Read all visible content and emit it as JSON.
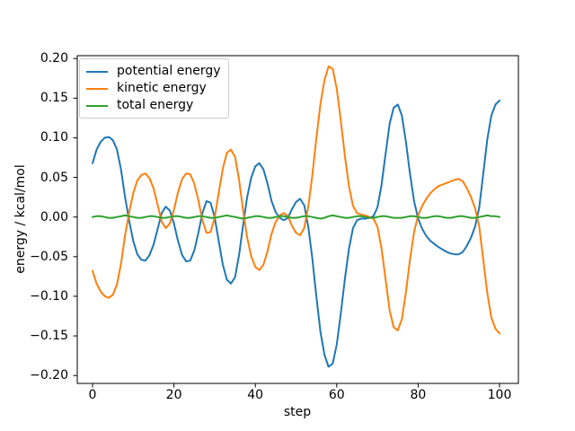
{
  "figure": {
    "background": "#ffffff",
    "xlabel": "step",
    "ylabel": "energy / kcal/mol"
  },
  "legend": {
    "position": "upper left",
    "entries": [
      {
        "label": "potential energy",
        "color": "#1f77b4"
      },
      {
        "label": "kinetic energy",
        "color": "#ff7f0e"
      },
      {
        "label": "total energy",
        "color": "#2ca02c"
      }
    ]
  },
  "axis": {
    "spine_color": "#000000",
    "text_color": "#000000"
  },
  "chart_data": {
    "type": "line",
    "title": "",
    "xlabel": "step",
    "ylabel": "energy / kcal/mol",
    "grid": false,
    "legend_position": "upper left",
    "xlim": [
      -3.8,
      104.6
    ],
    "ylim": [
      -0.21,
      0.2036
    ],
    "xticks": [
      {
        "value": 0,
        "label": "0"
      },
      {
        "value": 20,
        "label": "20"
      },
      {
        "value": 40,
        "label": "40"
      },
      {
        "value": 60,
        "label": "60"
      },
      {
        "value": 80,
        "label": "80"
      },
      {
        "value": 100,
        "label": "100"
      }
    ],
    "yticks": [
      {
        "value": 0.2,
        "label": "0.20"
      },
      {
        "value": 0.15,
        "label": "0.15"
      },
      {
        "value": 0.1,
        "label": "0.10"
      },
      {
        "value": 0.05,
        "label": "0.05"
      },
      {
        "value": 0.0,
        "label": "0.00"
      },
      {
        "value": -0.05,
        "label": "−0.05"
      },
      {
        "value": -0.1,
        "label": "−0.10"
      },
      {
        "value": -0.15,
        "label": "−0.15"
      },
      {
        "value": -0.2,
        "label": "−0.20"
      }
    ],
    "x": [
      0,
      1,
      2,
      3,
      4,
      5,
      6,
      7,
      8,
      9,
      10,
      11,
      12,
      13,
      14,
      15,
      16,
      17,
      18,
      19,
      20,
      21,
      22,
      23,
      24,
      25,
      26,
      27,
      28,
      29,
      30,
      31,
      32,
      33,
      34,
      35,
      36,
      37,
      38,
      39,
      40,
      41,
      42,
      43,
      44,
      45,
      46,
      47,
      48,
      49,
      50,
      51,
      52,
      53,
      54,
      55,
      56,
      57,
      58,
      59,
      60,
      61,
      62,
      63,
      64,
      65,
      66,
      67,
      68,
      69,
      70,
      71,
      72,
      73,
      74,
      75,
      76,
      77,
      78,
      79,
      80,
      81,
      82,
      83,
      84,
      85,
      86,
      87,
      88,
      89,
      90,
      91,
      92,
      93,
      94,
      95,
      96,
      97,
      98,
      99,
      100
    ],
    "series": [
      {
        "name": "potential energy",
        "color": "#1f77b4",
        "values": [
          0.068,
          0.085,
          0.095,
          0.1,
          0.101,
          0.097,
          0.085,
          0.06,
          0.025,
          -0.005,
          -0.03,
          -0.047,
          -0.054,
          -0.055,
          -0.048,
          -0.035,
          -0.015,
          0.005,
          0.013,
          0.008,
          -0.008,
          -0.03,
          -0.048,
          -0.056,
          -0.055,
          -0.042,
          -0.02,
          0.005,
          0.02,
          0.018,
          0.0,
          -0.03,
          -0.06,
          -0.079,
          -0.084,
          -0.076,
          -0.048,
          -0.01,
          0.025,
          0.05,
          0.064,
          0.068,
          0.06,
          0.042,
          0.02,
          0.006,
          -0.001,
          -0.004,
          -0.001,
          0.01,
          0.019,
          0.023,
          0.015,
          -0.012,
          -0.052,
          -0.1,
          -0.145,
          -0.174,
          -0.189,
          -0.185,
          -0.161,
          -0.122,
          -0.078,
          -0.04,
          -0.014,
          -0.004,
          -0.002,
          -0.002,
          -0.001,
          0.001,
          0.012,
          0.04,
          0.08,
          0.118,
          0.138,
          0.142,
          0.128,
          0.095,
          0.055,
          0.02,
          -0.002,
          -0.015,
          -0.024,
          -0.03,
          -0.034,
          -0.038,
          -0.041,
          -0.044,
          -0.046,
          -0.047,
          -0.047,
          -0.044,
          -0.036,
          -0.026,
          -0.012,
          0.012,
          0.055,
          0.098,
          0.128,
          0.142,
          0.147
        ]
      },
      {
        "name": "kinetic energy",
        "color": "#ff7f0e",
        "values": [
          -0.068,
          -0.084,
          -0.094,
          -0.1,
          -0.102,
          -0.098,
          -0.085,
          -0.059,
          -0.023,
          0.006,
          0.03,
          0.046,
          0.053,
          0.055,
          0.049,
          0.036,
          0.015,
          -0.006,
          -0.014,
          -0.008,
          0.009,
          0.031,
          0.048,
          0.055,
          0.054,
          0.042,
          0.021,
          -0.004,
          -0.02,
          -0.019,
          -0.001,
          0.03,
          0.061,
          0.081,
          0.085,
          0.076,
          0.047,
          0.008,
          -0.026,
          -0.05,
          -0.063,
          -0.067,
          -0.06,
          -0.043,
          -0.021,
          -0.006,
          0.002,
          0.005,
          0.001,
          -0.011,
          -0.02,
          -0.023,
          -0.014,
          0.013,
          0.052,
          0.099,
          0.143,
          0.173,
          0.19,
          0.187,
          0.162,
          0.122,
          0.077,
          0.039,
          0.014,
          0.005,
          0.003,
          0.002,
          0.0,
          -0.002,
          -0.012,
          -0.039,
          -0.079,
          -0.118,
          -0.139,
          -0.143,
          -0.129,
          -0.095,
          -0.054,
          -0.019,
          0.002,
          0.014,
          0.023,
          0.03,
          0.035,
          0.039,
          0.041,
          0.043,
          0.045,
          0.047,
          0.048,
          0.045,
          0.036,
          0.025,
          0.011,
          -0.012,
          -0.054,
          -0.096,
          -0.127,
          -0.141,
          -0.147
        ]
      },
      {
        "name": "total energy",
        "color": "#2ca02c",
        "values": [
          0,
          0.001,
          0.001,
          0,
          -0.001,
          -0.001,
          0,
          0.001,
          0.002,
          0.001,
          0,
          -0.001,
          -0.001,
          0,
          0.001,
          0.001,
          0,
          -0.001,
          -0.001,
          0,
          0.001,
          0.001,
          0,
          -0.001,
          -0.001,
          0,
          0.001,
          0.001,
          0,
          -0.001,
          -0.001,
          0,
          0.001,
          0.002,
          0.001,
          0,
          -0.001,
          -0.002,
          -0.001,
          0,
          0.001,
          0.001,
          0,
          -0.001,
          -0.001,
          0,
          0.001,
          0.001,
          0,
          -0.001,
          -0.001,
          0,
          0.001,
          0.001,
          0,
          -0.001,
          -0.002,
          -0.001,
          0.001,
          0.002,
          0.001,
          0,
          -0.001,
          -0.001,
          0,
          0.001,
          0.001,
          0,
          -0.001,
          -0.001,
          0,
          0.001,
          0.001,
          0,
          -0.001,
          -0.001,
          -0.001,
          0,
          0.001,
          0.001,
          0,
          -0.001,
          -0.001,
          0,
          0.001,
          0.001,
          0,
          -0.001,
          -0.001,
          0,
          0.001,
          0.001,
          0,
          -0.001,
          -0.001,
          0,
          0.001,
          0.002,
          0.001,
          0.001,
          0
        ]
      }
    ]
  }
}
